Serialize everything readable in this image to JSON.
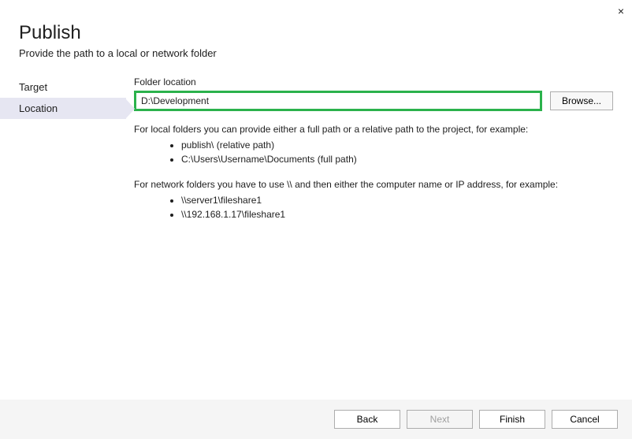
{
  "close_glyph": "×",
  "header": {
    "title": "Publish",
    "subtitle": "Provide the path to a local or network folder"
  },
  "sidebar": {
    "items": [
      {
        "label": "Target",
        "active": false
      },
      {
        "label": "Location",
        "active": true
      }
    ]
  },
  "main": {
    "field_label": "Folder location",
    "folder_value": "D:\\Development",
    "browse_label": "Browse...",
    "help": {
      "local_intro": "For local folders you can provide either a full path or a relative path to the project, for example:",
      "local_examples": [
        "publish\\ (relative path)",
        "C:\\Users\\Username\\Documents (full path)"
      ],
      "network_intro": "For network folders you have to use \\\\ and then either the computer name or IP address, for example:",
      "network_examples": [
        "\\\\server1\\fileshare1",
        "\\\\192.168.1.17\\fileshare1"
      ]
    }
  },
  "footer": {
    "back": "Back",
    "next": "Next",
    "finish": "Finish",
    "cancel": "Cancel"
  },
  "colors": {
    "highlight_border": "#2bb24c",
    "sidebar_active_bg": "#e6e6f2",
    "footer_bg": "#f5f5f5",
    "button_border": "#adadad"
  }
}
